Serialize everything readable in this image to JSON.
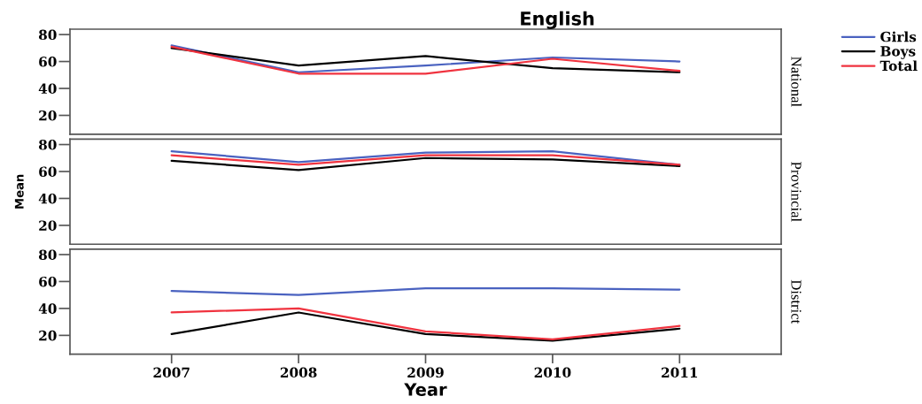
{
  "chart_data": [
    {
      "type": "line",
      "title": "English",
      "annotations": [
        "National"
      ],
      "x": [
        2007,
        2008,
        2009,
        2010,
        2011
      ],
      "series": [
        {
          "name": "Girls",
          "color": "#4a62c0",
          "values": [
            72,
            52,
            57,
            63,
            60
          ]
        },
        {
          "name": "Boys",
          "color": "#000000",
          "values": [
            70,
            57,
            64,
            55,
            52
          ]
        },
        {
          "name": "Total",
          "color": "#f0333f",
          "values": [
            71,
            51,
            51,
            62,
            53
          ]
        }
      ],
      "xlim": [
        2006.2,
        2011.8
      ],
      "ylim": [
        6,
        84
      ],
      "yticks": [
        20,
        40,
        60,
        80
      ],
      "tick_labels": "y",
      "legend": "top right",
      "line_style": "solid"
    },
    {
      "type": "line",
      "annotations": [
        "Provincial"
      ],
      "ylabel": "Mean",
      "x": [
        2007,
        2008,
        2009,
        2010,
        2011
      ],
      "series": [
        {
          "color": "#4a62c0",
          "values": [
            75,
            67,
            74,
            75,
            65
          ]
        },
        {
          "color": "#000000",
          "values": [
            68,
            61,
            70,
            69,
            64
          ]
        },
        {
          "color": "#f0333f",
          "values": [
            72,
            65,
            72,
            72,
            65
          ]
        }
      ],
      "xlim": [
        2006.2,
        2011.8
      ],
      "ylim": [
        6,
        84
      ],
      "yticks": [
        20,
        40,
        60,
        80
      ],
      "tick_labels": "y",
      "line_style": "solid"
    },
    {
      "type": "line",
      "annotations": [
        "District"
      ],
      "xlabel": "Year",
      "x": [
        2007,
        2008,
        2009,
        2010,
        2011
      ],
      "series": [
        {
          "color": "#4a62c0",
          "values": [
            53,
            50,
            55,
            55,
            54
          ]
        },
        {
          "color": "#000000",
          "values": [
            21,
            37,
            21,
            16,
            25
          ]
        },
        {
          "color": "#f0333f",
          "values": [
            37,
            40,
            23,
            17,
            27
          ]
        }
      ],
      "xlim": [
        2006.2,
        2011.8
      ],
      "xticks": [
        2007,
        2008,
        2009,
        2010,
        2011
      ],
      "ylim": [
        6,
        84
      ],
      "yticks": [
        20,
        40,
        60,
        80
      ],
      "line_style": "solid"
    }
  ]
}
